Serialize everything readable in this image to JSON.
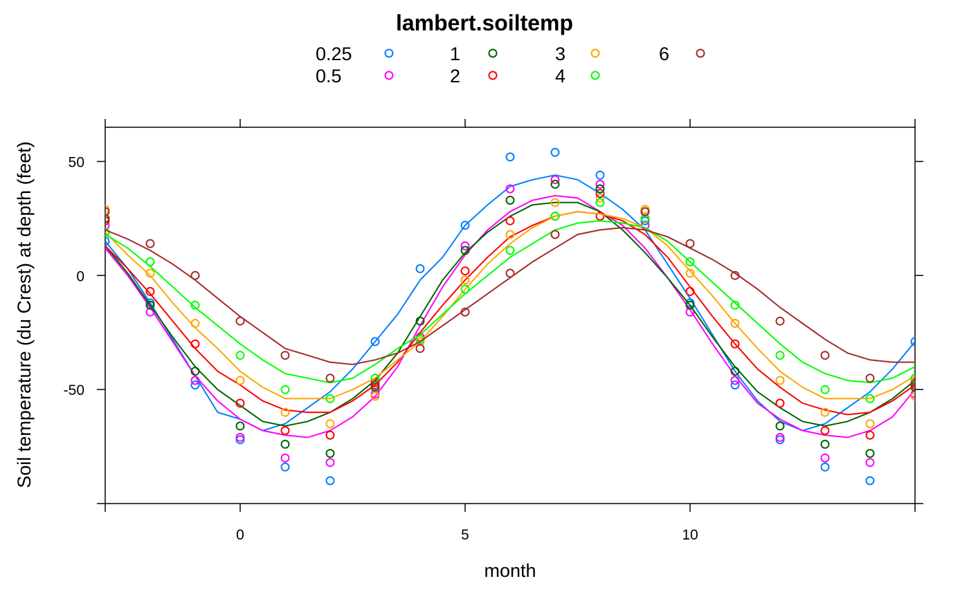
{
  "chart_data": {
    "type": "scatter",
    "title": "lambert.soiltemp",
    "xlabel": "month",
    "ylabel": "Soil temperature (du Crest) at depth (feet)",
    "xlim": [
      -3,
      15
    ],
    "ylim": [
      -100,
      65
    ],
    "xticks": [
      "0",
      "5",
      "10"
    ],
    "xtick_values": [
      0,
      5,
      10
    ],
    "yticks": [
      "50",
      "0",
      "-50"
    ],
    "ytick_values": [
      50,
      0,
      -50
    ],
    "grid": false,
    "legend_position": "top",
    "legend": [
      {
        "label": "0.25",
        "color": "#0080ff"
      },
      {
        "label": "0.5",
        "color": "#ff00ff"
      },
      {
        "label": "1",
        "color": "#006400"
      },
      {
        "label": "2",
        "color": "#ff0000"
      },
      {
        "label": "3",
        "color": "#ffa500"
      },
      {
        "label": "4",
        "color": "#00ff00"
      },
      {
        "label": "6",
        "color": "#a52a2a"
      }
    ],
    "x": [
      -3,
      -2,
      -1,
      0,
      1,
      2,
      3,
      4,
      5,
      6,
      7,
      8,
      9,
      10,
      11,
      12,
      13,
      14,
      15
    ],
    "series": [
      {
        "name": "0.25",
        "color": "#0080ff",
        "points": [
          -3,
          15,
          -2,
          -12,
          -1,
          -48,
          0,
          -72,
          1,
          -84,
          2,
          -90,
          3,
          -29,
          4,
          3,
          5,
          22,
          6,
          52,
          7,
          54,
          8,
          44,
          9,
          24,
          10,
          -12,
          11,
          -48,
          12,
          -72,
          13,
          -84,
          14,
          -90,
          15,
          -29
        ],
        "curve": [
          -3,
          15,
          -2.5,
          3,
          -2,
          -12,
          -1.5,
          -28,
          -1,
          -44,
          -0.5,
          -60,
          0,
          -63,
          0.5,
          -68,
          1,
          -65,
          1.5,
          -58,
          2,
          -51,
          2.5,
          -41,
          3,
          -29,
          3.5,
          -17,
          4,
          -2,
          4.5,
          8,
          5,
          22,
          5.5,
          31,
          6,
          39,
          6.5,
          42,
          7,
          44,
          7.5,
          42,
          8,
          36,
          8.5,
          29,
          9,
          20,
          9.5,
          5,
          10,
          -10,
          10.5,
          -26,
          11,
          -42,
          11.5,
          -55,
          12,
          -64,
          12.5,
          -68,
          13,
          -65,
          13.5,
          -58,
          14,
          -51,
          14.5,
          -41,
          15,
          -29
        ]
      },
      {
        "name": "0.5",
        "color": "#ff00ff",
        "points": [
          -3,
          22,
          -2,
          -16,
          -1,
          -46,
          0,
          -71,
          1,
          -80,
          2,
          -82,
          3,
          -52,
          4,
          -27,
          5,
          13,
          6,
          38,
          7,
          42,
          8,
          40,
          9,
          22,
          10,
          -16,
          11,
          -46,
          12,
          -71,
          13,
          -80,
          14,
          -82,
          15,
          -52
        ],
        "curve": [
          -3,
          12,
          -2.5,
          0,
          -2,
          -14,
          -1.5,
          -29,
          -1,
          -44,
          -0.5,
          -55,
          0,
          -63,
          0.5,
          -68,
          1,
          -70,
          1.5,
          -71,
          2,
          -68,
          2.5,
          -62,
          3,
          -53,
          3.5,
          -40,
          4,
          -22,
          4.5,
          -5,
          5,
          9,
          5.5,
          20,
          6,
          28,
          6.5,
          33,
          7,
          35,
          7.5,
          34,
          8,
          28,
          8.5,
          22,
          9,
          12,
          9.5,
          -1,
          10,
          -15,
          10.5,
          -30,
          11,
          -44,
          11.5,
          -56,
          12,
          -63,
          12.5,
          -68,
          13,
          -70,
          13.5,
          -71,
          14,
          -68,
          14.5,
          -62,
          15,
          -50
        ]
      },
      {
        "name": "1",
        "color": "#006400",
        "points": [
          -3,
          25,
          -2,
          -13,
          -1,
          -42,
          0,
          -66,
          1,
          -74,
          2,
          -78,
          3,
          -49,
          4,
          -20,
          5,
          11,
          6,
          33,
          7,
          40,
          8,
          38,
          9,
          25,
          10,
          -13,
          11,
          -42,
          12,
          -66,
          13,
          -74,
          14,
          -78,
          15,
          -49
        ],
        "curve": [
          -3,
          13,
          -2.5,
          1,
          -2,
          -13,
          -1.5,
          -27,
          -1,
          -40,
          -0.5,
          -50,
          0,
          -57,
          0.5,
          -64,
          1,
          -66,
          1.5,
          -64,
          2,
          -60,
          2.5,
          -54,
          3,
          -46,
          3.5,
          -34,
          4,
          -18,
          4.5,
          -2,
          5,
          10,
          5.5,
          19,
          6,
          26,
          6.5,
          31,
          7,
          32,
          7.5,
          32,
          8,
          28,
          8.5,
          20,
          9,
          10,
          9.5,
          -1,
          10,
          -13,
          10.5,
          -27,
          11,
          -40,
          11.5,
          -51,
          12,
          -58,
          12.5,
          -64,
          13,
          -66,
          13.5,
          -64,
          14,
          -60,
          14.5,
          -54,
          15,
          -46
        ]
      },
      {
        "name": "2",
        "color": "#ff0000",
        "points": [
          -3,
          24,
          -2,
          -7,
          -1,
          -30,
          0,
          -56,
          1,
          -68,
          2,
          -70,
          3,
          -47,
          4,
          -28,
          5,
          2,
          6,
          24,
          7,
          26,
          8,
          26,
          9,
          28,
          10,
          -7,
          11,
          -30,
          12,
          -56,
          13,
          -68,
          14,
          -70,
          15,
          -47
        ],
        "curve": [
          -3,
          13,
          -2.5,
          3,
          -2,
          -8,
          -1.5,
          -20,
          -1,
          -32,
          -0.5,
          -42,
          0,
          -48,
          0.5,
          -55,
          1,
          -59,
          1.5,
          -60,
          2,
          -60,
          2.5,
          -55,
          3,
          -48,
          3.5,
          -38,
          4,
          -25,
          4.5,
          -13,
          5,
          -2,
          5.5,
          8,
          6,
          17,
          6.5,
          22,
          7,
          26,
          7.5,
          28,
          8,
          27,
          8.5,
          24,
          9,
          18,
          9.5,
          8,
          10,
          -5,
          10.5,
          -18,
          11,
          -30,
          11.5,
          -41,
          12,
          -49,
          12.5,
          -56,
          13,
          -59,
          13.5,
          -61,
          14,
          -60,
          14.5,
          -55,
          15,
          -48
        ]
      },
      {
        "name": "3",
        "color": "#ffa500",
        "points": [
          -3,
          29,
          -2,
          1,
          -1,
          -21,
          0,
          -46,
          1,
          -60,
          2,
          -65,
          3,
          -53,
          4,
          -29,
          5,
          -2,
          6,
          18,
          7,
          32,
          8,
          34,
          9,
          29,
          10,
          1,
          11,
          -21,
          12,
          -46,
          13,
          -60,
          14,
          -65,
          15,
          -53
        ],
        "curve": [
          -3,
          19,
          -2.5,
          9,
          -2,
          0,
          -1.5,
          -12,
          -1,
          -23,
          -0.5,
          -32,
          0,
          -42,
          0.5,
          -49,
          1,
          -54,
          1.5,
          -54,
          2,
          -54,
          2.5,
          -50,
          3,
          -45,
          3.5,
          -37,
          4,
          -29,
          4.5,
          -18,
          5,
          -6,
          5.5,
          5,
          6,
          14,
          6.5,
          21,
          7,
          26,
          7.5,
          28,
          8,
          27,
          8.5,
          25,
          9,
          21,
          9.5,
          13,
          10,
          2,
          10.5,
          -9,
          11,
          -21,
          11.5,
          -32,
          12,
          -42,
          12.5,
          -49,
          13,
          -54,
          13.5,
          -54,
          14,
          -54,
          14.5,
          -50,
          15,
          -44
        ]
      },
      {
        "name": "4",
        "color": "#00ff00",
        "points": [
          -3,
          19,
          -2,
          6,
          -1,
          -13,
          0,
          -35,
          1,
          -50,
          2,
          -54,
          3,
          -45,
          4,
          -28,
          5,
          -6,
          6,
          11,
          7,
          26,
          8,
          32,
          9,
          25,
          10,
          6,
          11,
          -13,
          12,
          -35,
          13,
          -50,
          14,
          -54,
          15,
          -45
        ],
        "curve": [
          -3,
          18,
          -2.5,
          12,
          -2,
          4,
          -1.5,
          -5,
          -1,
          -14,
          -0.5,
          -22,
          0,
          -30,
          0.5,
          -37,
          1,
          -43,
          1.5,
          -45,
          2,
          -47,
          2.5,
          -45,
          3,
          -39,
          3.5,
          -32,
          4,
          -26,
          4.5,
          -17,
          5,
          -8,
          5.5,
          0,
          6,
          8,
          6.5,
          14,
          7,
          20,
          7.5,
          23,
          8,
          24,
          8.5,
          23,
          9,
          21,
          9.5,
          15,
          10,
          6,
          10.5,
          -3,
          10.5,
          -3,
          11,
          -12,
          11.5,
          -21,
          12,
          -30,
          12.5,
          -38,
          13,
          -43,
          13.5,
          -46,
          14,
          -47,
          14.5,
          -45,
          15,
          -40
        ]
      },
      {
        "name": "6",
        "color": "#a52a2a",
        "points": [
          -3,
          28,
          -2,
          14,
          -1,
          0,
          0,
          -20,
          1,
          -35,
          2,
          -45,
          3,
          -48,
          4,
          -32,
          5,
          -16,
          6,
          1,
          7,
          18,
          8,
          36,
          9,
          28,
          10,
          14,
          11,
          0,
          12,
          -20,
          13,
          -35,
          14,
          -45,
          15,
          -48
        ],
        "curve": [
          -3,
          20,
          -2.5,
          16,
          -2,
          11,
          -1.5,
          5,
          -1,
          -2,
          -0.5,
          -10,
          0,
          -18,
          0.5,
          -25,
          1,
          -32,
          1.5,
          -35,
          2,
          -38,
          2.5,
          -39,
          3,
          -37,
          3.5,
          -34,
          4,
          -29,
          4.5,
          -22,
          5,
          -15,
          5.5,
          -8,
          6,
          -1,
          6.5,
          6,
          7,
          12,
          7.5,
          18,
          8,
          20,
          8.5,
          21,
          9,
          20,
          9.5,
          17,
          10,
          12,
          10.5,
          7,
          11,
          1,
          11.5,
          -6,
          12,
          -14,
          12.5,
          -21,
          13,
          -28,
          13.5,
          -34,
          14,
          -37,
          14.5,
          -38,
          15,
          -38
        ]
      }
    ]
  }
}
